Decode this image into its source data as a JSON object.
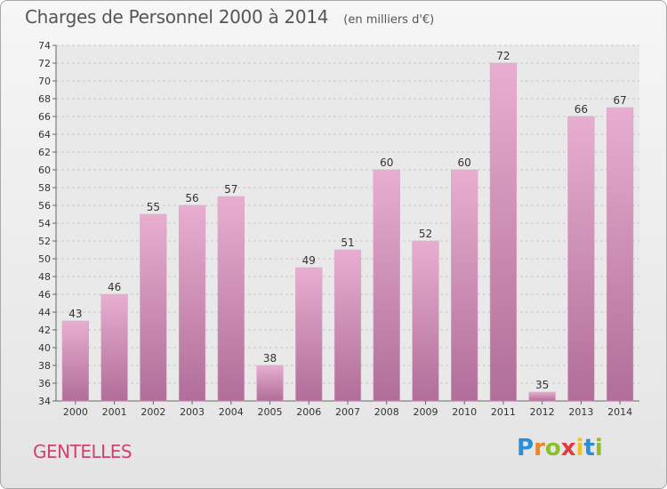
{
  "page": {
    "title": "Charges de Personnel 2000 à 2014",
    "subtitle": "(en milliers d'€)",
    "commune": "GENTELLES",
    "logo": "Proxiti"
  },
  "colors": {
    "bar_top": "#e8aed0",
    "bar_bottom": "#b06e98",
    "commune_text": "#d23f74",
    "title_text": "#555555"
  },
  "chart_data": {
    "type": "bar",
    "title": "Charges de Personnel 2000 à 2014",
    "subtitle": "(en milliers d'€)",
    "categories": [
      "2000",
      "2001",
      "2002",
      "2003",
      "2004",
      "2005",
      "2006",
      "2007",
      "2008",
      "2009",
      "2010",
      "2011",
      "2012",
      "2013",
      "2014"
    ],
    "values": [
      43,
      46,
      55,
      56,
      57,
      38,
      49,
      51,
      60,
      52,
      60,
      72,
      35,
      66,
      67
    ],
    "ylim": [
      34,
      74
    ],
    "yticks": [
      34,
      36,
      38,
      40,
      42,
      44,
      46,
      48,
      50,
      52,
      54,
      56,
      58,
      60,
      62,
      64,
      66,
      68,
      70,
      72,
      74
    ],
    "grid": true,
    "xlabel": "",
    "ylabel": ""
  }
}
